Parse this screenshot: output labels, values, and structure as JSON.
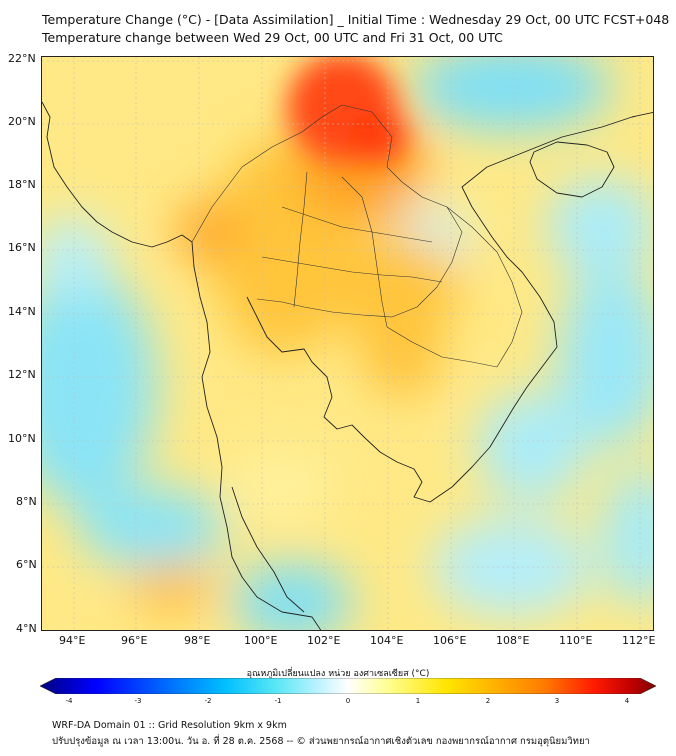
{
  "title_line1": "Temperature Change (°C) - [Data Assimilation] _ Initial Time : Wednesday 29 Oct, 00 UTC FCST+048",
  "title_line2": "Temperature change between Wed 29 Oct, 00 UTC and Fri 31 Oct, 00 UTC",
  "lat_ticks": [
    "22°N",
    "20°N",
    "18°N",
    "16°N",
    "14°N",
    "12°N",
    "10°N",
    "8°N",
    "6°N",
    "4°N"
  ],
  "lon_ticks": [
    "94°E",
    "96°E",
    "98°E",
    "100°E",
    "102°E",
    "104°E",
    "106°E",
    "108°E",
    "110°E",
    "112°E"
  ],
  "colorbar": {
    "title": "อุณหภูมิเปลี่ยนแปลง หน่วย องศาเซลเซียส (°C)",
    "ticks": [
      "-4",
      "-3",
      "-2",
      "-1",
      "0",
      "1",
      "2",
      "3",
      "4"
    ],
    "min": -4,
    "max": 4,
    "colors": [
      "#00007f",
      "#0000ff",
      "#0066ff",
      "#00bfff",
      "#55e6f5",
      "#b8f2ff",
      "#ffffff",
      "#ffff99",
      "#ffe500",
      "#ffb000",
      "#ff7a00",
      "#ff2a00",
      "#d40000",
      "#7f0000"
    ]
  },
  "footer_line1": "WRF-DA Domain 01 :: Grid Resolution 9km x 9km",
  "footer_line2": "ปรับปรุงข้อมูล ณ เวลา 13:00น. วัน อ. ที่ 28 ต.ค. 2568 -- © ส่วนพยากรณ์อากาศเชิงตัวเลข กองพยากรณ์อากาศ กรมอุตุนิยมวิทยา",
  "map": {
    "lat_range": [
      4,
      22.2
    ],
    "lon_range": [
      93,
      112.5
    ],
    "colors": {
      "warm_strong": "#ff3a10",
      "warm": "#ffb020",
      "mild": "#ffeb55",
      "cool": "#9be8f8",
      "cold": "#55d0f0",
      "border": "#222222"
    }
  }
}
